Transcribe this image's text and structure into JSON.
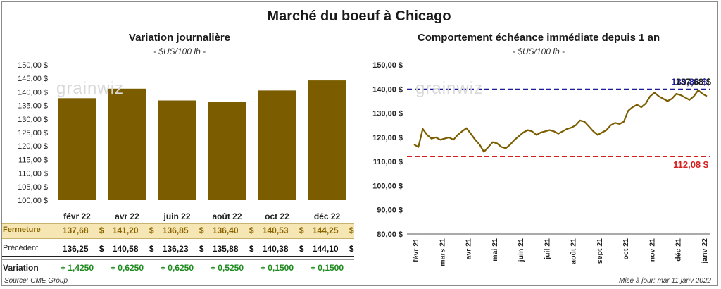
{
  "title": "Marché du boeuf à Chicago",
  "left_chart": {
    "title": "Variation  journalière",
    "unit": "- $US/100 lb -"
  },
  "right_chart": {
    "title": "Comportement  échéance immédiate depuis 1 an",
    "unit": "- $US/100 lb -"
  },
  "watermark": "grainwiz",
  "table": {
    "rows": [
      {
        "label": "Fermeture",
        "values": [
          "137,68",
          "141,20",
          "136,85",
          "136,40",
          "140,53",
          "144,25"
        ]
      },
      {
        "label": "Précédent",
        "values": [
          "136,25",
          "140,58",
          "136,23",
          "135,88",
          "140,38",
          "144,10"
        ]
      },
      {
        "label": "Variation",
        "values": [
          "+ 1,4250",
          "+ 0,6250",
          "+ 0,6250",
          "+ 0,5250",
          "+ 0,1500",
          "+ 0,1500"
        ]
      }
    ],
    "currency": "$"
  },
  "footer": {
    "source": "Source: CME Group",
    "updated": "Mise à jour: mar 11 janv 2022"
  },
  "colors": {
    "bar": "#7b5d00",
    "line": "#7b5d00",
    "high": "#1c1c9a",
    "low": "#d42020",
    "fermeture_band": "#f6e6b4",
    "variation_text": "#1e8a1e"
  },
  "chart_data": [
    {
      "type": "bar",
      "categories": [
        "févr 22",
        "avr 22",
        "juin 22",
        "août 22",
        "oct 22",
        "déc 22"
      ],
      "values": [
        137.68,
        141.2,
        136.85,
        136.4,
        140.53,
        144.25
      ],
      "ylim": [
        100,
        150
      ],
      "yticks": [
        "100,00 $",
        "105,00 $",
        "110,00 $",
        "115,00 $",
        "120,00 $",
        "125,00 $",
        "130,00 $",
        "135,00 $",
        "140,00 $",
        "145,00 $",
        "150,00 $"
      ]
    },
    {
      "type": "line",
      "x_labels": [
        "févr 21",
        "mars 21",
        "avr 21",
        "mai 21",
        "juin 21",
        "juil 21",
        "août 21",
        "sept 21",
        "oct 21",
        "nov 21",
        "déc 21",
        "janv 22"
      ],
      "values": [
        117.0,
        116.0,
        123.5,
        121.0,
        119.5,
        120.0,
        119.0,
        119.5,
        120.0,
        119.0,
        121.0,
        122.5,
        123.8,
        121.5,
        119.0,
        117.0,
        114.0,
        116.0,
        118.0,
        117.5,
        116.0,
        115.5,
        117.0,
        119.0,
        120.5,
        122.0,
        123.0,
        122.5,
        121.0,
        122.0,
        122.5,
        123.0,
        122.5,
        121.5,
        122.5,
        123.5,
        124.0,
        125.0,
        127.0,
        126.5,
        124.5,
        122.5,
        121.0,
        122.0,
        123.0,
        125.0,
        126.0,
        125.5,
        126.5,
        131.0,
        132.5,
        133.5,
        132.5,
        134.0,
        137.0,
        138.5,
        137.0,
        136.0,
        135.0,
        136.0,
        138.0,
        137.5,
        136.5,
        135.5,
        137.0,
        139.5,
        138.0,
        137.0
      ],
      "ylim": [
        80,
        150
      ],
      "yticks": [
        "80,00 $",
        "90,00 $",
        "100,00 $",
        "110,00 $",
        "120,00 $",
        "130,00 $",
        "140,00 $",
        "150,00 $"
      ],
      "high": {
        "value": 139.88,
        "label": "139,88 $"
      },
      "last": {
        "value": 137.68,
        "label": "137,68 $"
      },
      "low": {
        "value": 112.08,
        "label": "112,08 $"
      }
    }
  ]
}
